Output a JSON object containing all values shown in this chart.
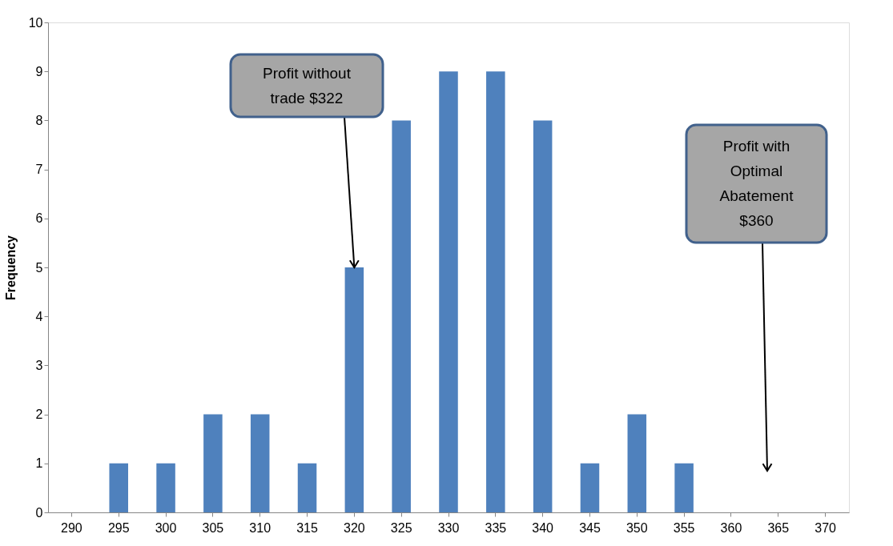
{
  "chart_data": {
    "type": "bar",
    "categories": [
      "290",
      "295",
      "300",
      "305",
      "310",
      "315",
      "320",
      "325",
      "330",
      "335",
      "340",
      "345",
      "350",
      "355",
      "360",
      "365",
      "370"
    ],
    "values": [
      0,
      1,
      1,
      2,
      2,
      1,
      5,
      8,
      9,
      9,
      8,
      1,
      2,
      1,
      0,
      0,
      0
    ],
    "color": "#4f81bd",
    "ylabel": "Frequency",
    "ylim": [
      0,
      10
    ],
    "yticks": [
      0,
      1,
      2,
      3,
      4,
      5,
      6,
      7,
      8,
      9,
      10
    ],
    "grid": false,
    "annotations": [
      {
        "text": "Profit without\ntrade $322",
        "x": "320",
        "y": 5
      },
      "Profit with\nOptimal\nAbatement\n$360"
    ]
  }
}
